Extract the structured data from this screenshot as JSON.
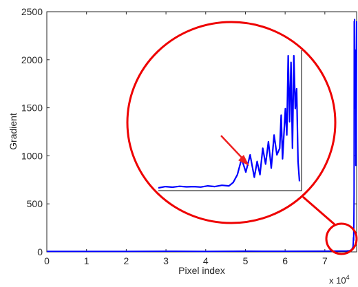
{
  "chart_data": {
    "type": "line",
    "title": "",
    "xlabel": "Pixel index",
    "ylabel": "Gradient",
    "x_exponent_label": "x 10",
    "x_exponent_power": "4",
    "xlim": [
      0,
      7.8
    ],
    "ylim": [
      0,
      2500
    ],
    "x_ticks": [
      0,
      1,
      2,
      3,
      4,
      5,
      6,
      7
    ],
    "x_tick_labels": [
      "0",
      "1",
      "2",
      "3",
      "4",
      "5",
      "6",
      "7"
    ],
    "y_ticks": [
      0,
      500,
      1000,
      1500,
      2000,
      2500
    ],
    "y_tick_labels": [
      "0",
      "500",
      "1000",
      "1500",
      "2000",
      "2500"
    ],
    "grid": false,
    "legend": "none",
    "series": [
      {
        "color": "#0000ff",
        "x": [
          0,
          1,
          2,
          3,
          4,
          5,
          6,
          7,
          7.55,
          7.62,
          7.66,
          7.68,
          7.69,
          7.7,
          7.71,
          7.715,
          7.72,
          7.725,
          7.73,
          7.735,
          7.74,
          7.745,
          7.75,
          7.76,
          7.77,
          7.78,
          7.79,
          7.8
        ],
        "values": [
          5,
          6,
          5,
          7,
          6,
          8,
          7,
          8,
          10,
          12,
          20,
          25,
          40,
          30,
          60,
          90,
          150,
          120,
          300,
          600,
          2400,
          1800,
          2420,
          1500,
          2100,
          900,
          1200,
          2400
        ]
      }
    ],
    "annotations": {
      "zoom_circle_color": "#ee0000",
      "arrow_color": "#ee2020",
      "inset_description_series": {
        "x": [
          0,
          0.05,
          0.1,
          0.15,
          0.2,
          0.25,
          0.3,
          0.35,
          0.4,
          0.45,
          0.5,
          0.53,
          0.56,
          0.59,
          0.62,
          0.65,
          0.68,
          0.7,
          0.72,
          0.74,
          0.76,
          0.78,
          0.8,
          0.82,
          0.84,
          0.86,
          0.87,
          0.88,
          0.9,
          0.91,
          0.92,
          0.93,
          0.94,
          0.95,
          0.96,
          0.97,
          0.98,
          0.99,
          1.0
        ],
        "values": [
          0,
          0.01,
          0.005,
          0.012,
          0.008,
          0.01,
          0.006,
          0.015,
          0.01,
          0.02,
          0.015,
          0.04,
          0.1,
          0.22,
          0.12,
          0.25,
          0.08,
          0.2,
          0.1,
          0.3,
          0.18,
          0.35,
          0.15,
          0.4,
          0.25,
          0.3,
          0.55,
          0.22,
          0.6,
          0.4,
          1.0,
          0.5,
          0.95,
          0.3,
          1.0,
          0.6,
          0.75,
          0.2,
          0.05
        ]
      }
    }
  }
}
